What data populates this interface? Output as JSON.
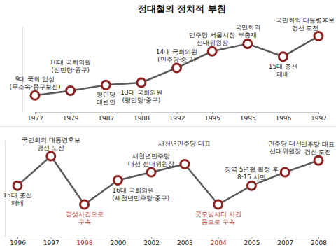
{
  "chart_data": [
    {
      "type": "line",
      "title": "정대철의 정치적 부침",
      "categories": [
        "1977",
        "1979",
        "1987",
        "1988",
        "1992",
        "1995",
        "1995",
        "1996",
        "1997"
      ],
      "values": [
        35,
        45,
        57,
        62,
        93,
        128,
        144,
        117,
        160
      ],
      "point_labels": [
        [
          "9대 국회 입성",
          "(무소속·중구보선)"
        ],
        [
          "10대 국회의원",
          "(신민당·중구)"
        ],
        [
          "평민당",
          "대변인"
        ],
        [
          "13대 국회의원",
          "(평민당·중구)"
        ],
        [
          "14대 국회의원",
          "(민주당·중구)"
        ],
        [
          "민주당 서울시장",
          "선대위원장"
        ],
        [
          "국민회의",
          "부총재"
        ],
        [
          "15대 총선",
          "패배"
        ],
        [
          "국민회의 대통령후보",
          "경선 도전"
        ]
      ],
      "color": "#8b2323",
      "colors": [
        "#222222",
        "#222222",
        "#222222",
        "#222222",
        "#222222",
        "#222222",
        "#222222",
        "#222222",
        "#222222"
      ],
      "marker": "circle",
      "ylim": [
        0,
        180
      ],
      "tick_labels": "x"
    },
    {
      "type": "line",
      "categories": [
        "1996",
        "1997",
        "1998",
        "2000",
        "2002",
        "2003",
        "2004",
        "2005",
        "2007",
        "2008"
      ],
      "values": [
        95,
        150,
        60,
        105,
        120,
        135,
        60,
        95,
        120,
        142
      ],
      "point_labels": [
        [
          "15대 총선",
          "패배"
        ],
        [
          "국민회의 대통령후보",
          "경선 도전"
        ],
        [
          "경성사건으로",
          "구속"
        ],
        [
          "16대 국회의원",
          "(새천년민주당·중구)"
        ],
        [
          "새천년민주당",
          "대선 선대위원장"
        ],
        [
          "새천년민주당 대표"
        ],
        [
          "굿모닝시티 사건",
          "등으로 구속"
        ],
        [
          "징역 5년형 확정 후",
          "8·15 사면"
        ],
        [
          "민주당 대선",
          "선대위원장"
        ],
        [
          "민주당 대표",
          "경선 도전"
        ]
      ],
      "color": "#8b2323",
      "colors": [
        "#222222",
        "#222222",
        "#c0392b",
        "#222222",
        "#222222",
        "#222222",
        "#c0392b",
        "#222222",
        "#222222",
        "#222222"
      ],
      "marker": "circle",
      "ylim": [
        0,
        180
      ],
      "tick_labels": "x"
    }
  ]
}
